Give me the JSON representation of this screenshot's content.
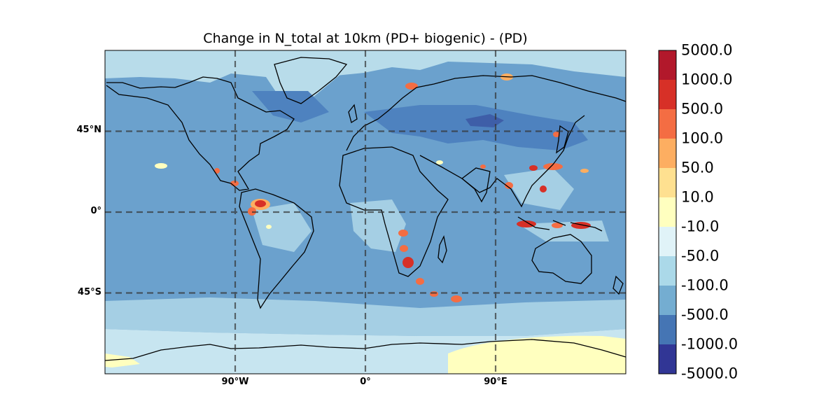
{
  "map": {
    "title": "Change in N_total at 10km (PD+ biogenic) - (PD)",
    "projection": "PlateCarree",
    "gridlines": {
      "style": "dashed",
      "latitudes": [
        {
          "value": 45,
          "label": "45°N"
        },
        {
          "value": 0,
          "label": "0°"
        },
        {
          "value": -45,
          "label": "45°S"
        }
      ],
      "longitudes": [
        {
          "value": -90,
          "label": "90°W"
        },
        {
          "value": 0,
          "label": "0°"
        },
        {
          "value": 90,
          "label": "90°E"
        }
      ]
    },
    "background_level_color": "#6ba1cd",
    "colorbar": {
      "levels": [
        "5000.0",
        "1000.0",
        "500.0",
        "100.0",
        "50.0",
        "10.0",
        "-10.0",
        "-50.0",
        "-100.0",
        "-500.0",
        "-1000.0",
        "-5000.0"
      ],
      "colors": [
        "#b2182b",
        "#d73027",
        "#f46d43",
        "#fdae61",
        "#fee090",
        "#ffffbf",
        "#e0f3f8",
        "#abd9e9",
        "#74add1",
        "#4575b4",
        "#313695"
      ]
    }
  }
}
